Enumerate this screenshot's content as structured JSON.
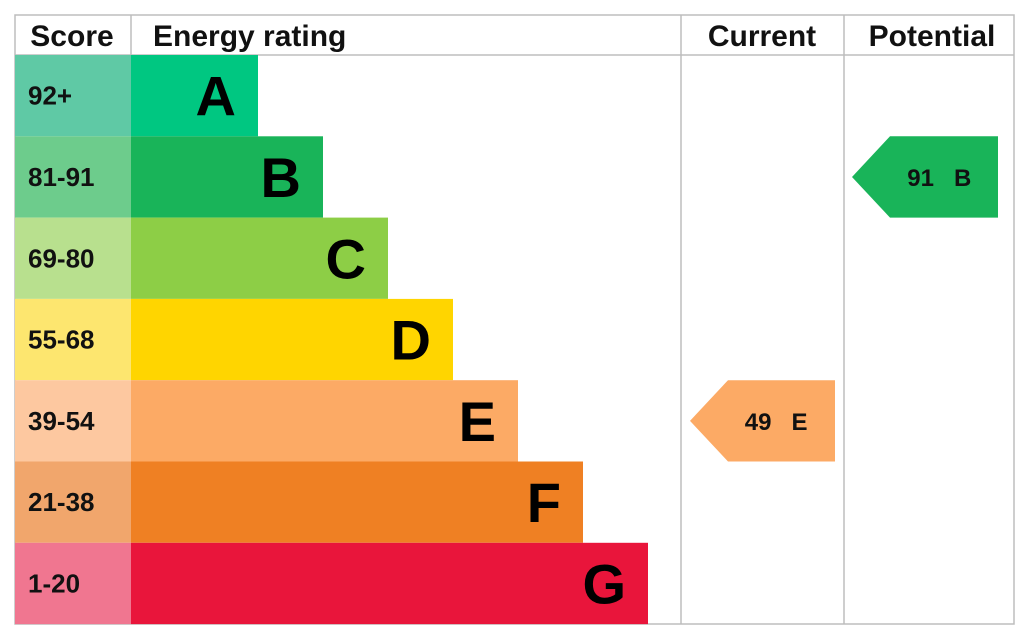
{
  "headers": {
    "score": "Score",
    "energy_rating": "Energy rating",
    "current": "Current",
    "potential": "Potential"
  },
  "chart_data": {
    "type": "bar",
    "title": "",
    "ratings": [
      {
        "band": "A",
        "range": "92+",
        "color": "#00c781",
        "score_bg": "#5fc9a5"
      },
      {
        "band": "B",
        "range": "81-91",
        "color": "#19b459",
        "score_bg": "#6dcc8c"
      },
      {
        "band": "C",
        "range": "69-80",
        "color": "#8dce46",
        "score_bg": "#b8e08e"
      },
      {
        "band": "D",
        "range": "55-68",
        "color": "#ffd500",
        "score_bg": "#fde66f"
      },
      {
        "band": "E",
        "range": "39-54",
        "color": "#fcaa65",
        "score_bg": "#fdc8a0"
      },
      {
        "band": "F",
        "range": "21-38",
        "color": "#ef8023",
        "score_bg": "#f1a66c"
      },
      {
        "band": "G",
        "range": "1-20",
        "color": "#e9153b",
        "score_bg": "#f07690"
      }
    ],
    "current": {
      "score": "49",
      "band": "E",
      "color": "#fcaa65"
    },
    "potential": {
      "score": "91",
      "band": "B",
      "color": "#19b459"
    }
  }
}
